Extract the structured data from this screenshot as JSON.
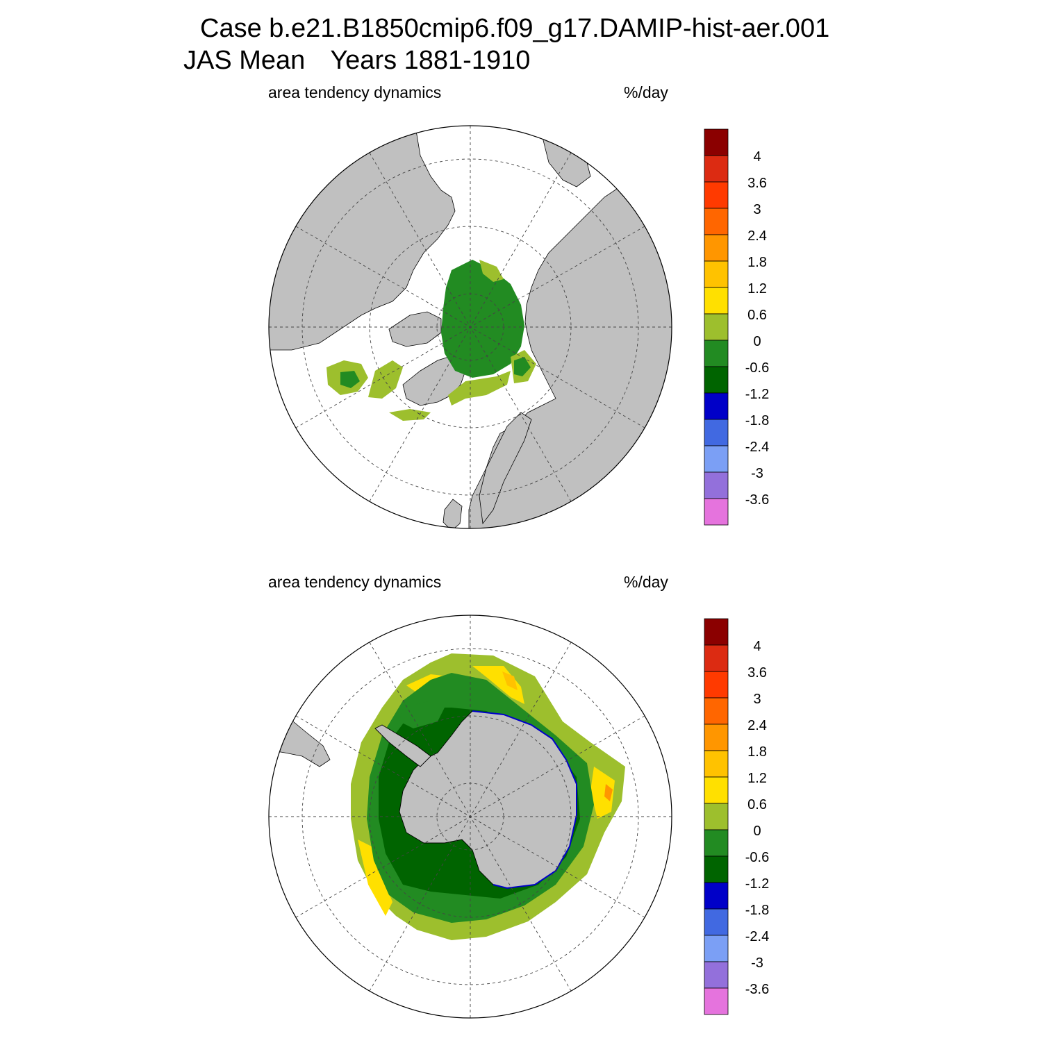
{
  "figure": {
    "title_line1": "Case b.e21.B1850cmip6.f09_g17.DAMIP-hist-aer.001",
    "title_line2_prefix": "JAS Mean",
    "title_line2_years": "Years 1881-1910"
  },
  "panels": [
    {
      "id": "nh",
      "hemisphere": "north",
      "variable_label": "area tendency dynamics",
      "units_label": "%/day"
    },
    {
      "id": "sh",
      "hemisphere": "south",
      "variable_label": "area tendency dynamics",
      "units_label": "%/day"
    }
  ],
  "colorbar": {
    "tick_labels": [
      "4",
      "3.6",
      "3",
      "2.4",
      "1.8",
      "1.2",
      "0.6",
      "0",
      "-0.6",
      "-1.2",
      "-1.8",
      "-2.4",
      "-3",
      "-3.6"
    ],
    "colors": [
      "#8b0000",
      "#dc2b12",
      "#ff3a00",
      "#ff6600",
      "#ff9600",
      "#ffc200",
      "#ffe000",
      "#9dbf2d",
      "#228b22",
      "#006400",
      "#0000c8",
      "#4169e1",
      "#7b9ff5",
      "#9370db",
      "#e573dd"
    ]
  },
  "style": {
    "land_color": "#c0c0c0",
    "ocean_color": "#ffffff"
  }
}
